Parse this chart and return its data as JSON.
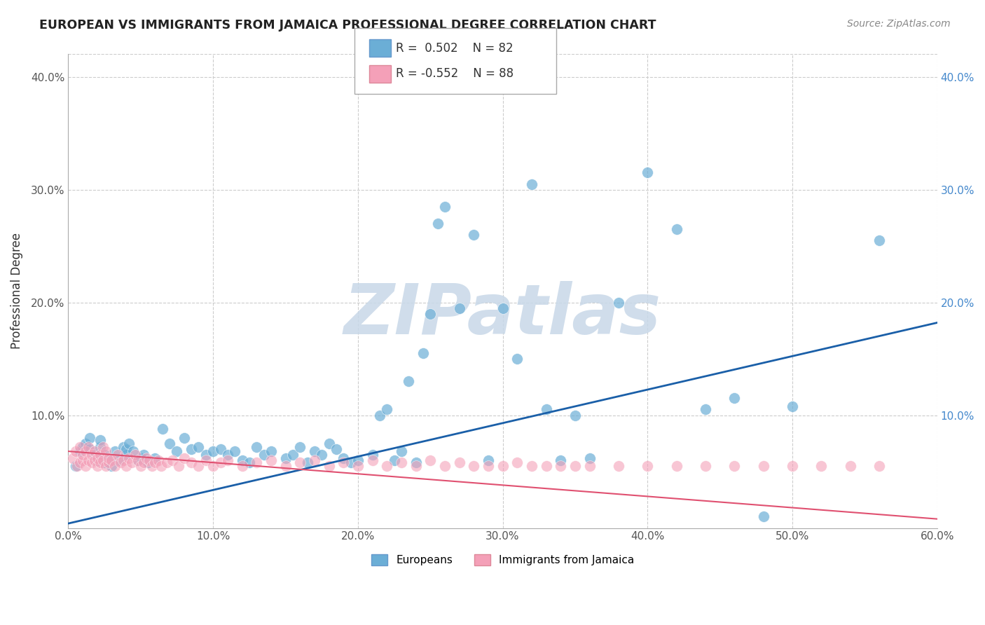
{
  "title": "EUROPEAN VS IMMIGRANTS FROM JAMAICA PROFESSIONAL DEGREE CORRELATION CHART",
  "source": "Source: ZipAtlas.com",
  "ylabel": "Professional Degree",
  "xlim": [
    0.0,
    0.6
  ],
  "ylim": [
    0.0,
    0.42
  ],
  "xticks": [
    0.0,
    0.1,
    0.2,
    0.3,
    0.4,
    0.5,
    0.6
  ],
  "yticks": [
    0.0,
    0.1,
    0.2,
    0.3,
    0.4
  ],
  "xticklabels": [
    "0.0%",
    "10.0%",
    "20.0%",
    "30.0%",
    "40.0%",
    "50.0%",
    "60.0%"
  ],
  "yticklabels": [
    "",
    "10.0%",
    "20.0%",
    "30.0%",
    "40.0%"
  ],
  "legend_entries": [
    {
      "label": "Europeans",
      "R": "0.502",
      "N": "82",
      "color": "#a8c8e8"
    },
    {
      "label": "Immigrants from Jamaica",
      "R": "-0.552",
      "N": "88",
      "color": "#f0a8b8"
    }
  ],
  "blue_line": {
    "x0": 0.0,
    "y0": 0.004,
    "x1": 0.6,
    "y1": 0.182
  },
  "pink_line": {
    "x0": 0.0,
    "y0": 0.068,
    "x1": 0.6,
    "y1": 0.008
  },
  "blue_scatter_x": [
    0.005,
    0.008,
    0.01,
    0.012,
    0.015,
    0.015,
    0.018,
    0.02,
    0.022,
    0.022,
    0.025,
    0.025,
    0.028,
    0.03,
    0.032,
    0.035,
    0.038,
    0.04,
    0.04,
    0.042,
    0.045,
    0.048,
    0.05,
    0.052,
    0.055,
    0.06,
    0.065,
    0.07,
    0.075,
    0.08,
    0.085,
    0.09,
    0.095,
    0.1,
    0.105,
    0.11,
    0.115,
    0.12,
    0.125,
    0.13,
    0.135,
    0.14,
    0.15,
    0.155,
    0.16,
    0.165,
    0.17,
    0.175,
    0.18,
    0.185,
    0.19,
    0.195,
    0.2,
    0.21,
    0.215,
    0.22,
    0.225,
    0.23,
    0.235,
    0.24,
    0.245,
    0.25,
    0.255,
    0.26,
    0.27,
    0.28,
    0.29,
    0.3,
    0.31,
    0.32,
    0.33,
    0.34,
    0.35,
    0.36,
    0.38,
    0.4,
    0.42,
    0.44,
    0.46,
    0.48,
    0.5,
    0.56
  ],
  "blue_scatter_y": [
    0.055,
    0.068,
    0.072,
    0.075,
    0.08,
    0.07,
    0.065,
    0.06,
    0.072,
    0.078,
    0.058,
    0.065,
    0.06,
    0.055,
    0.068,
    0.06,
    0.072,
    0.065,
    0.07,
    0.075,
    0.068,
    0.06,
    0.062,
    0.065,
    0.058,
    0.062,
    0.088,
    0.075,
    0.068,
    0.08,
    0.07,
    0.072,
    0.065,
    0.068,
    0.07,
    0.065,
    0.068,
    0.06,
    0.058,
    0.072,
    0.065,
    0.068,
    0.062,
    0.065,
    0.072,
    0.058,
    0.068,
    0.065,
    0.075,
    0.07,
    0.062,
    0.058,
    0.06,
    0.065,
    0.1,
    0.105,
    0.06,
    0.068,
    0.13,
    0.058,
    0.155,
    0.19,
    0.27,
    0.285,
    0.195,
    0.26,
    0.06,
    0.195,
    0.15,
    0.305,
    0.105,
    0.06,
    0.1,
    0.062,
    0.2,
    0.315,
    0.265,
    0.105,
    0.115,
    0.01,
    0.108,
    0.255
  ],
  "pink_scatter_x": [
    0.003,
    0.005,
    0.006,
    0.008,
    0.008,
    0.01,
    0.01,
    0.012,
    0.012,
    0.014,
    0.014,
    0.016,
    0.016,
    0.018,
    0.018,
    0.02,
    0.02,
    0.022,
    0.022,
    0.024,
    0.024,
    0.026,
    0.026,
    0.028,
    0.028,
    0.03,
    0.032,
    0.034,
    0.036,
    0.038,
    0.04,
    0.042,
    0.044,
    0.046,
    0.048,
    0.05,
    0.052,
    0.054,
    0.056,
    0.058,
    0.06,
    0.062,
    0.064,
    0.068,
    0.072,
    0.076,
    0.08,
    0.085,
    0.09,
    0.095,
    0.1,
    0.105,
    0.11,
    0.12,
    0.13,
    0.14,
    0.15,
    0.16,
    0.17,
    0.18,
    0.19,
    0.2,
    0.21,
    0.22,
    0.23,
    0.24,
    0.25,
    0.26,
    0.27,
    0.28,
    0.29,
    0.3,
    0.31,
    0.32,
    0.33,
    0.34,
    0.35,
    0.36,
    0.38,
    0.4,
    0.42,
    0.44,
    0.46,
    0.48,
    0.5,
    0.52,
    0.54,
    0.56
  ],
  "pink_scatter_y": [
    0.062,
    0.068,
    0.055,
    0.058,
    0.072,
    0.06,
    0.065,
    0.068,
    0.055,
    0.06,
    0.072,
    0.058,
    0.065,
    0.06,
    0.068,
    0.055,
    0.062,
    0.065,
    0.058,
    0.06,
    0.072,
    0.055,
    0.068,
    0.058,
    0.062,
    0.06,
    0.055,
    0.065,
    0.058,
    0.06,
    0.055,
    0.062,
    0.058,
    0.065,
    0.06,
    0.055,
    0.058,
    0.062,
    0.06,
    0.055,
    0.058,
    0.06,
    0.055,
    0.058,
    0.06,
    0.055,
    0.062,
    0.058,
    0.055,
    0.06,
    0.055,
    0.058,
    0.06,
    0.055,
    0.058,
    0.06,
    0.055,
    0.058,
    0.06,
    0.055,
    0.058,
    0.055,
    0.06,
    0.055,
    0.058,
    0.055,
    0.06,
    0.055,
    0.058,
    0.055,
    0.055,
    0.055,
    0.058,
    0.055,
    0.055,
    0.055,
    0.055,
    0.055,
    0.055,
    0.055,
    0.055,
    0.055,
    0.055,
    0.055,
    0.055,
    0.055,
    0.055,
    0.055
  ],
  "background_color": "#ffffff",
  "grid_color": "#cccccc",
  "watermark": "ZIPatlas",
  "watermark_color": "#c8d8e8",
  "blue_color": "#6baed6",
  "pink_color": "#f4a0b8",
  "blue_line_color": "#1a5fa8",
  "pink_line_color": "#e05070"
}
